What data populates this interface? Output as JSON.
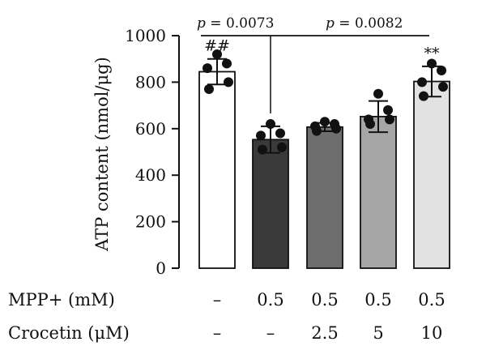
{
  "chart_data": {
    "type": "bar",
    "ylabel": "ATP content (nmol/μg)",
    "ylim": [
      0,
      1000
    ],
    "yticks": [
      "0",
      "200",
      "400",
      "600",
      "800",
      "1000"
    ],
    "bar_colors": [
      "#ffffff",
      "#3a3a3a",
      "#6e6e6e",
      "#a6a6a6",
      "#e2e2e2"
    ],
    "values": [
      845,
      553,
      607,
      652,
      803
    ],
    "errors": [
      55,
      57,
      18,
      67,
      65
    ],
    "points": [
      [
        920,
        880,
        860,
        800,
        770
      ],
      [
        620,
        580,
        570,
        520,
        510
      ],
      [
        630,
        620,
        610,
        600,
        590
      ],
      [
        750,
        680,
        640,
        640,
        620
      ],
      [
        880,
        850,
        800,
        780,
        740
      ]
    ],
    "annotations": [
      "##",
      "",
      "",
      "",
      "**"
    ],
    "comparisons": [
      {
        "label_prefix": "p",
        "label_value": " = 0.0073"
      },
      {
        "label_prefix": "p",
        "label_value": " = 0.0082"
      }
    ],
    "treatment_rows": [
      {
        "label": "MPP+ (mM)",
        "values": [
          "–",
          "0.5",
          "0.5",
          "0.5",
          "0.5"
        ]
      },
      {
        "label": "Crocetin (μM)",
        "values": [
          "–",
          "–",
          "2.5",
          "5",
          "10"
        ]
      }
    ]
  }
}
